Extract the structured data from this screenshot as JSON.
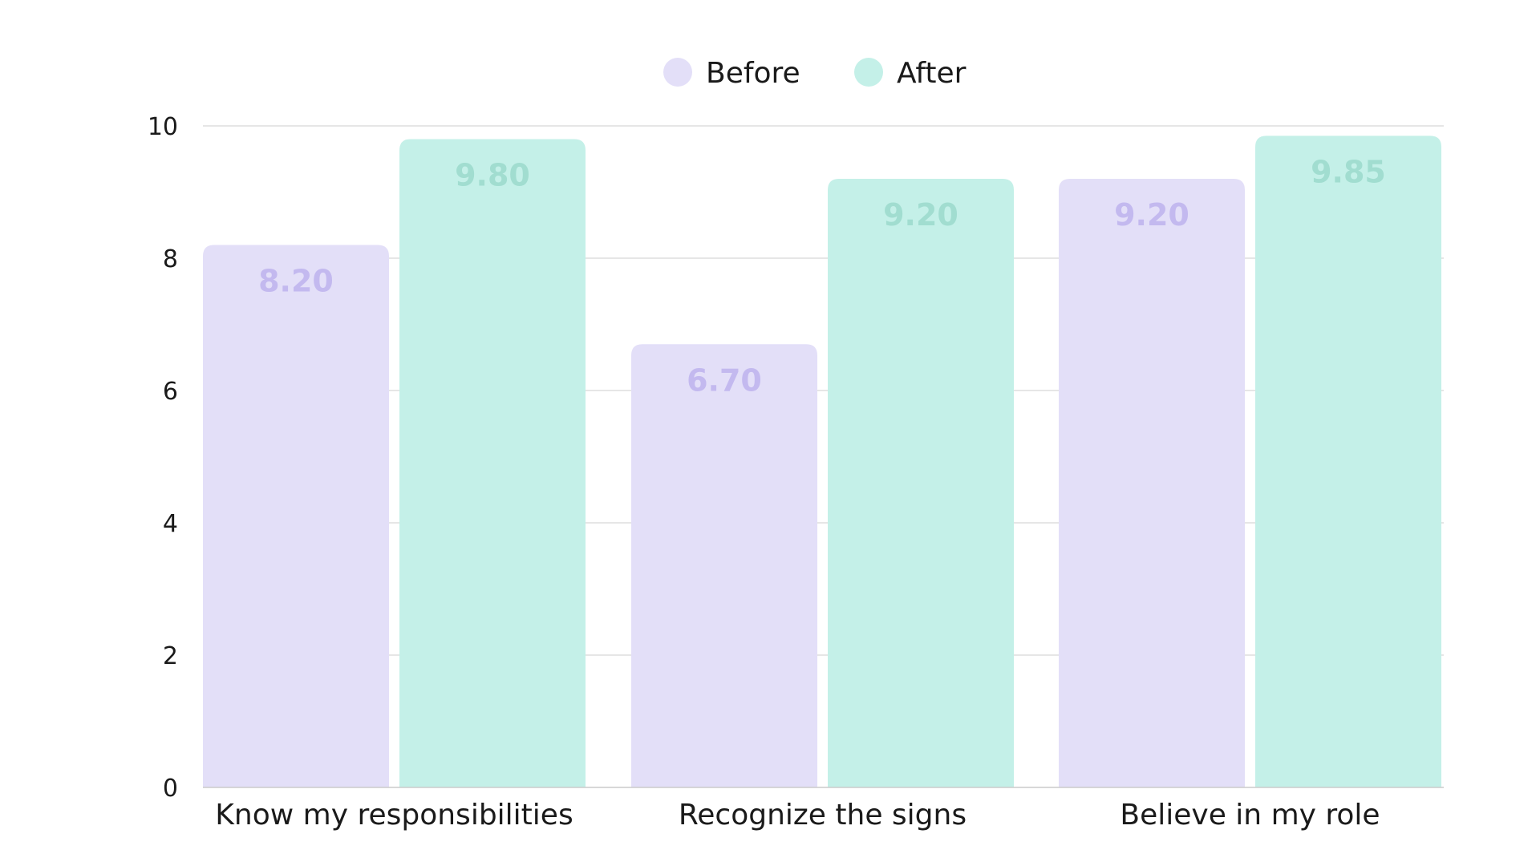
{
  "chart_data": {
    "type": "bar",
    "categories": [
      "Know my responsibilities",
      "Recognize the signs",
      "Believe in my role"
    ],
    "series": [
      {
        "name": "Before",
        "values": [
          8.2,
          6.7,
          9.2
        ],
        "labels": [
          "8.20",
          "6.70",
          "9.20"
        ]
      },
      {
        "name": "After",
        "values": [
          9.8,
          9.2,
          9.85
        ],
        "labels": [
          "9.80",
          "9.20",
          "9.85"
        ]
      }
    ],
    "ylim": [
      0,
      10
    ],
    "yticks": [
      0,
      2,
      4,
      6,
      8,
      10
    ],
    "grid": true,
    "legend": "top-center",
    "title": "",
    "xlabel": "",
    "ylabel": ""
  },
  "colors": {
    "before_fill": "#e3dff8",
    "before_text": "#c3b9ef",
    "after_fill": "#c4f0e8",
    "after_text": "#a1ddd0",
    "grid": "#dddddd",
    "axis": "#cccccc"
  }
}
